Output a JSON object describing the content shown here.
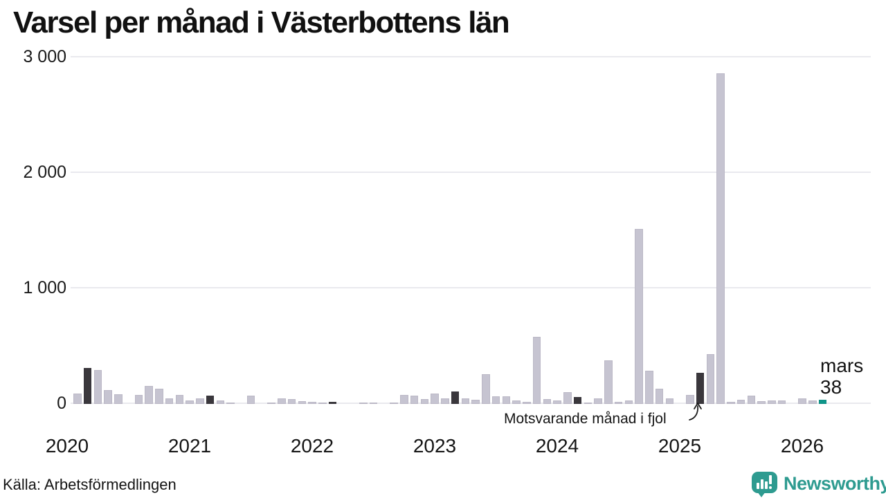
{
  "title": "Varsel per månad i Västerbottens län",
  "source": "Källa: Arbetsförmedlingen",
  "branding": {
    "name": "Newsworthy",
    "icon": "newsworthy-speech-bubble-chart-icon",
    "color": "#2e9b90"
  },
  "annotation": {
    "text": "Motsvarande månad i fjol"
  },
  "latest_label": {
    "month": "mars",
    "value": "38"
  },
  "colors": {
    "bar": "#c6c4d1",
    "highlight": "#3a373c",
    "current": "#0e968a",
    "grid": "#e9e9ee",
    "text": "#141414"
  },
  "chart_data": {
    "type": "bar",
    "title": "Varsel per månad i Västerbottens län",
    "ylim": [
      0,
      3000
    ],
    "grid": "horizontal",
    "yticks": [
      {
        "value": 0,
        "label": "0"
      },
      {
        "value": 1000,
        "label": "1 000"
      },
      {
        "value": 2000,
        "label": "2 000"
      },
      {
        "value": 3000,
        "label": "3 000"
      }
    ],
    "highlight_month_index": 2,
    "highlight_meaning": "Motsvarande månad i fjol",
    "current": {
      "year": "2026",
      "month_index": 2,
      "month": "mars",
      "value": 38
    },
    "years": [
      {
        "year": "2020",
        "values": [
          0,
          90,
          310,
          295,
          120,
          85,
          0,
          80,
          155,
          130,
          45,
          80
        ]
      },
      {
        "year": "2021",
        "values": [
          30,
          50,
          70,
          30,
          10,
          0,
          70,
          0,
          12,
          48,
          40,
          25
        ]
      },
      {
        "year": "2022",
        "values": [
          18,
          12,
          15,
          0,
          0,
          10,
          12,
          0,
          8,
          76,
          70,
          44
        ]
      },
      {
        "year": "2023",
        "values": [
          90,
          45,
          105,
          45,
          35,
          255,
          65,
          65,
          28,
          20,
          580,
          42
        ]
      },
      {
        "year": "2024",
        "values": [
          30,
          102,
          60,
          10,
          45,
          375,
          15,
          30,
          1515,
          285,
          130,
          48
        ]
      },
      {
        "year": "2025",
        "values": [
          0,
          75,
          270,
          430,
          2860,
          20,
          35,
          70,
          25,
          28,
          28,
          0
        ]
      },
      {
        "year": "2026",
        "values": [
          45,
          28,
          38
        ]
      }
    ]
  }
}
